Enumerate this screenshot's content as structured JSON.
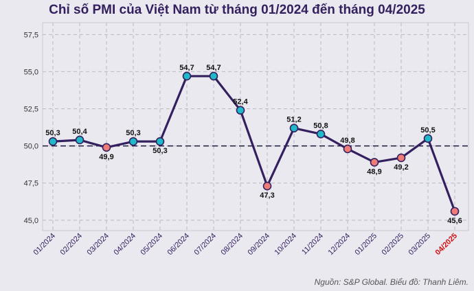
{
  "chart_data": {
    "type": "line",
    "title": "Chỉ số PMI của Việt Nam từ tháng 01/2024 đến tháng 04/2025",
    "categories": [
      "01/2024",
      "02/2024",
      "03/2024",
      "04/2024",
      "05/2024",
      "06/2024",
      "07/2024",
      "08/2024",
      "09/2024",
      "10/2024",
      "11/2024",
      "12/2024",
      "01/2025",
      "02/2025",
      "03/2025",
      "04/2025"
    ],
    "values": [
      50.3,
      50.4,
      49.9,
      50.3,
      50.3,
      54.7,
      54.7,
      52.4,
      47.3,
      51.2,
      50.8,
      49.8,
      48.9,
      49.2,
      50.5,
      45.6
    ],
    "value_labels": [
      "50,3",
      "50,4",
      "49,9",
      "50,3",
      "50,3",
      "54,7",
      "54,7",
      "52,4",
      "47,3",
      "51,2",
      "50,8",
      "49,8",
      "48,9",
      "49,2",
      "50,5",
      "45,6"
    ],
    "y_ticks": [
      45.0,
      47.5,
      50.0,
      52.5,
      55.0,
      57.5
    ],
    "y_tick_labels": [
      "45,0",
      "47,5",
      "50,0",
      "52,5",
      "55,0",
      "57,5"
    ],
    "ylim": [
      44.3,
      58.3
    ],
    "reference_line": 50.0,
    "grid": true,
    "xlabel": "",
    "ylabel": "",
    "colors": {
      "line": "#34205f",
      "above": "#1fb9c9",
      "below": "#ee7b78",
      "marker_edge": "#34205f",
      "grid": "#b9b8c4",
      "highlight_tick": "#d11010"
    }
  },
  "source": "Nguồn: S&P Global. Biểu đồ: Thanh Liêm."
}
